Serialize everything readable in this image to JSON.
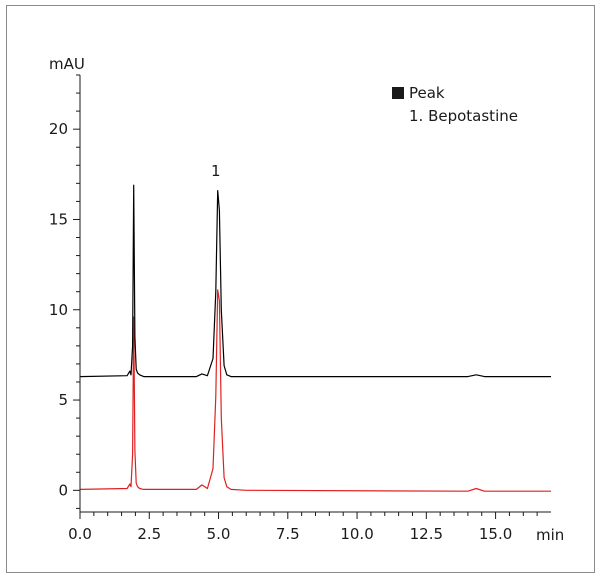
{
  "chart_data": {
    "type": "line",
    "title": "",
    "xlabel": "min",
    "ylabel": "mAU",
    "xlim": [
      0,
      17
    ],
    "ylim": [
      -1.2,
      23
    ],
    "x_ticks": [
      0,
      2.5,
      5,
      7.5,
      10,
      12.5,
      15
    ],
    "x_tick_labels": [
      "0.0",
      "2.5",
      "5.0",
      "7.5",
      "10.0",
      "12.5",
      "15.0"
    ],
    "y_ticks": [
      0,
      5,
      10,
      15,
      20
    ],
    "y_tick_labels": [
      "0",
      "5",
      "10",
      "15",
      "20"
    ],
    "grid": false,
    "legend": {
      "position": "top-right",
      "title": "Peak",
      "entries": [
        "1. Bepotastine"
      ]
    },
    "annotations": [
      {
        "text": "1",
        "x": 4.9,
        "y": 17.4
      }
    ],
    "series": [
      {
        "color": "#000000",
        "x": [
          0,
          1.7,
          1.8,
          1.84,
          1.9,
          1.94,
          1.98,
          2.03,
          2.08,
          2.15,
          2.3,
          4.2,
          4.4,
          4.6,
          4.8,
          4.9,
          4.97,
          5.03,
          5.1,
          5.2,
          5.3,
          5.45,
          6.0,
          14.0,
          14.3,
          14.6,
          17.0
        ],
        "y": [
          6.3,
          6.35,
          6.6,
          6.4,
          8.0,
          16.9,
          8.5,
          6.7,
          6.5,
          6.4,
          6.3,
          6.3,
          6.45,
          6.35,
          7.3,
          11.0,
          16.6,
          15.5,
          10.0,
          6.9,
          6.4,
          6.3,
          6.3,
          6.3,
          6.4,
          6.3,
          6.3
        ]
      },
      {
        "color": "#e02020",
        "x": [
          0,
          1.7,
          1.8,
          1.84,
          1.9,
          1.94,
          1.98,
          2.03,
          2.08,
          2.15,
          2.3,
          4.2,
          4.4,
          4.6,
          4.8,
          4.9,
          4.97,
          5.03,
          5.1,
          5.2,
          5.3,
          5.45,
          6.0,
          14.0,
          14.3,
          14.6,
          17.0
        ],
        "y": [
          0.05,
          0.1,
          0.35,
          0.2,
          2.0,
          9.6,
          2.2,
          0.4,
          0.2,
          0.1,
          0.05,
          0.05,
          0.3,
          0.1,
          1.2,
          5.2,
          11.1,
          10.5,
          4.0,
          0.7,
          0.2,
          0.05,
          0.0,
          -0.05,
          0.1,
          -0.05,
          -0.05
        ]
      }
    ]
  }
}
